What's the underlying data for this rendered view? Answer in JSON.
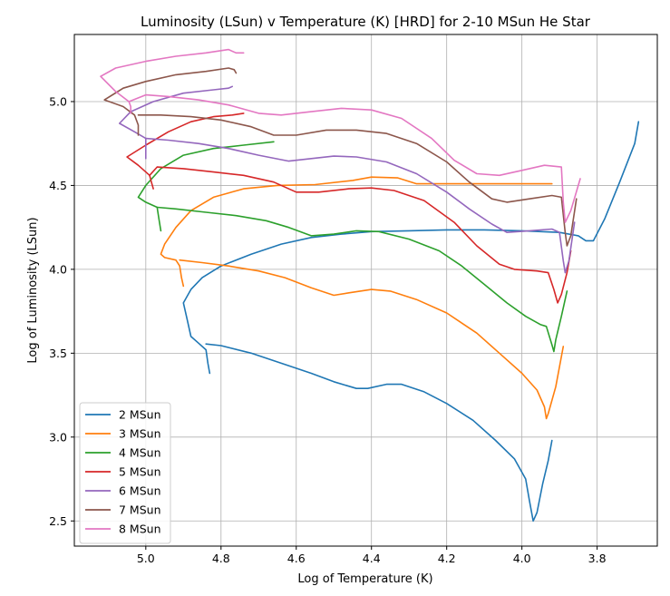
{
  "chart_data": {
    "type": "line",
    "title": "Luminosity (LSun) v Temperature (K) [HRD] for 2-10 MSun He Star",
    "xlabel": "Log of Temperature (K)",
    "ylabel": "Log of Luminosity (LSun)",
    "xlim": [
      5.19,
      3.64
    ],
    "ylim": [
      2.35,
      5.4
    ],
    "x_inverted": true,
    "grid": true,
    "legend_position": "lower-left",
    "x_ticks": [
      5.0,
      4.8,
      4.6,
      4.4,
      4.2,
      4.0,
      3.8
    ],
    "x_tick_labels": [
      "5.0",
      "4.8",
      "4.6",
      "4.4",
      "4.2",
      "4.0",
      "3.8"
    ],
    "y_ticks": [
      2.5,
      3.0,
      3.5,
      4.0,
      4.5,
      5.0
    ],
    "y_tick_labels": [
      "2.5",
      "3.0",
      "3.5",
      "4.0",
      "4.5",
      "5.0"
    ],
    "series": [
      {
        "name": "2 MSun",
        "color": "#1f77b4",
        "points": [
          [
            4.83,
            3.38
          ],
          [
            4.835,
            3.44
          ],
          [
            4.84,
            3.52
          ],
          [
            4.84,
            3.555
          ],
          [
            4.8,
            3.545
          ],
          [
            4.72,
            3.5
          ],
          [
            4.64,
            3.44
          ],
          [
            4.56,
            3.38
          ],
          [
            4.5,
            3.33
          ],
          [
            4.44,
            3.29
          ],
          [
            4.41,
            3.29
          ],
          [
            4.36,
            3.315
          ],
          [
            4.32,
            3.315
          ],
          [
            4.26,
            3.27
          ],
          [
            4.2,
            3.2
          ],
          [
            4.13,
            3.1
          ],
          [
            4.07,
            2.98
          ],
          [
            4.02,
            2.87
          ],
          [
            3.99,
            2.75
          ],
          [
            3.98,
            2.62
          ],
          [
            3.97,
            2.5
          ],
          [
            3.96,
            2.55
          ],
          [
            3.945,
            2.72
          ],
          [
            3.93,
            2.86
          ],
          [
            3.92,
            2.98
          ],
          [
            3.92,
            2.98
          ],
          [
            3.95,
            2.8
          ],
          [
            3.92,
            2.98
          ],
          [
            3.92,
            2.98
          ]
        ],
        "points_main": [
          [
            4.83,
            3.38
          ],
          [
            4.835,
            3.44
          ],
          [
            4.84,
            3.52
          ],
          [
            4.86,
            3.56
          ],
          [
            4.88,
            3.6
          ],
          [
            4.89,
            3.7
          ],
          [
            4.9,
            3.8
          ],
          [
            4.88,
            3.88
          ],
          [
            4.85,
            3.95
          ],
          [
            4.8,
            4.02
          ],
          [
            4.72,
            4.09
          ],
          [
            4.64,
            4.15
          ],
          [
            4.56,
            4.19
          ],
          [
            4.48,
            4.21
          ],
          [
            4.4,
            4.225
          ],
          [
            4.3,
            4.23
          ],
          [
            4.2,
            4.235
          ],
          [
            4.1,
            4.235
          ],
          [
            4.0,
            4.23
          ],
          [
            3.9,
            4.22
          ],
          [
            3.85,
            4.2
          ],
          [
            3.83,
            4.17
          ],
          [
            3.81,
            4.17
          ],
          [
            3.78,
            4.3
          ],
          [
            3.74,
            4.52
          ],
          [
            3.7,
            4.75
          ],
          [
            3.69,
            4.88
          ]
        ],
        "points_tail": [
          [
            4.84,
            3.555
          ],
          [
            4.8,
            3.545
          ],
          [
            4.72,
            3.5
          ],
          [
            4.64,
            3.44
          ],
          [
            4.56,
            3.38
          ],
          [
            4.5,
            3.33
          ],
          [
            4.44,
            3.29
          ],
          [
            4.41,
            3.29
          ],
          [
            4.36,
            3.315
          ],
          [
            4.32,
            3.315
          ],
          [
            4.26,
            3.27
          ],
          [
            4.2,
            3.2
          ],
          [
            4.13,
            3.1
          ],
          [
            4.07,
            2.98
          ],
          [
            4.02,
            2.87
          ],
          [
            3.99,
            2.75
          ],
          [
            3.98,
            2.62
          ],
          [
            3.97,
            2.5
          ],
          [
            3.96,
            2.55
          ],
          [
            3.945,
            2.72
          ],
          [
            3.93,
            2.86
          ],
          [
            3.92,
            2.98
          ]
        ]
      },
      {
        "name": "3 MSun",
        "color": "#ff7f0e",
        "points_main": [
          [
            4.9,
            3.9
          ],
          [
            4.905,
            3.95
          ],
          [
            4.91,
            4.02
          ],
          [
            4.92,
            4.055
          ],
          [
            4.95,
            4.07
          ],
          [
            4.96,
            4.09
          ],
          [
            4.95,
            4.15
          ],
          [
            4.92,
            4.25
          ],
          [
            4.88,
            4.35
          ],
          [
            4.82,
            4.43
          ],
          [
            4.74,
            4.48
          ],
          [
            4.65,
            4.5
          ],
          [
            4.55,
            4.505
          ],
          [
            4.45,
            4.53
          ],
          [
            4.4,
            4.55
          ],
          [
            4.33,
            4.545
          ],
          [
            4.28,
            4.51
          ],
          [
            4.2,
            4.51
          ],
          [
            4.1,
            4.51
          ],
          [
            4.0,
            4.51
          ],
          [
            3.92,
            4.51
          ]
        ],
        "points_tail": [
          [
            4.91,
            4.055
          ],
          [
            4.85,
            4.04
          ],
          [
            4.78,
            4.02
          ],
          [
            4.7,
            3.99
          ],
          [
            4.63,
            3.95
          ],
          [
            4.56,
            3.89
          ],
          [
            4.5,
            3.845
          ],
          [
            4.46,
            3.86
          ],
          [
            4.4,
            3.88
          ],
          [
            4.35,
            3.87
          ],
          [
            4.28,
            3.82
          ],
          [
            4.2,
            3.74
          ],
          [
            4.12,
            3.62
          ],
          [
            4.06,
            3.5
          ],
          [
            4.0,
            3.38
          ],
          [
            3.96,
            3.28
          ],
          [
            3.94,
            3.18
          ],
          [
            3.935,
            3.11
          ],
          [
            3.93,
            3.14
          ],
          [
            3.91,
            3.3
          ],
          [
            3.89,
            3.54
          ]
        ]
      },
      {
        "name": "4 MSun",
        "color": "#2ca02c",
        "points_main": [
          [
            4.96,
            4.23
          ],
          [
            4.965,
            4.3
          ],
          [
            4.97,
            4.37
          ],
          [
            5.0,
            4.4
          ],
          [
            5.02,
            4.43
          ],
          [
            5.0,
            4.5
          ],
          [
            4.96,
            4.6
          ],
          [
            4.9,
            4.68
          ],
          [
            4.82,
            4.72
          ],
          [
            4.74,
            4.74
          ],
          [
            4.66,
            4.76
          ]
        ],
        "points_tail": [
          [
            4.97,
            4.37
          ],
          [
            4.92,
            4.36
          ],
          [
            4.84,
            4.34
          ],
          [
            4.76,
            4.32
          ],
          [
            4.68,
            4.29
          ],
          [
            4.62,
            4.25
          ],
          [
            4.56,
            4.2
          ],
          [
            4.5,
            4.21
          ],
          [
            4.44,
            4.23
          ],
          [
            4.38,
            4.225
          ],
          [
            4.3,
            4.18
          ],
          [
            4.22,
            4.11
          ],
          [
            4.16,
            4.02
          ],
          [
            4.1,
            3.91
          ],
          [
            4.04,
            3.8
          ],
          [
            3.99,
            3.72
          ],
          [
            3.95,
            3.67
          ],
          [
            3.935,
            3.66
          ],
          [
            3.92,
            3.55
          ],
          [
            3.915,
            3.51
          ],
          [
            3.91,
            3.58
          ],
          [
            3.895,
            3.72
          ],
          [
            3.88,
            3.87
          ]
        ]
      },
      {
        "name": "5 MSun",
        "color": "#d62728",
        "points_main": [
          [
            4.98,
            4.48
          ],
          [
            4.985,
            4.52
          ],
          [
            4.99,
            4.56
          ],
          [
            5.02,
            4.62
          ],
          [
            5.05,
            4.67
          ],
          [
            5.0,
            4.74
          ],
          [
            4.94,
            4.82
          ],
          [
            4.88,
            4.88
          ],
          [
            4.82,
            4.91
          ],
          [
            4.77,
            4.92
          ],
          [
            4.74,
            4.93
          ]
        ],
        "points_tail": [
          [
            4.99,
            4.56
          ],
          [
            4.97,
            4.61
          ],
          [
            4.9,
            4.6
          ],
          [
            4.82,
            4.58
          ],
          [
            4.74,
            4.56
          ],
          [
            4.66,
            4.52
          ],
          [
            4.6,
            4.46
          ],
          [
            4.54,
            4.46
          ],
          [
            4.46,
            4.48
          ],
          [
            4.4,
            4.485
          ],
          [
            4.34,
            4.47
          ],
          [
            4.26,
            4.41
          ],
          [
            4.18,
            4.28
          ],
          [
            4.12,
            4.14
          ],
          [
            4.06,
            4.03
          ],
          [
            4.02,
            4.0
          ],
          [
            3.96,
            3.99
          ],
          [
            3.93,
            3.98
          ],
          [
            3.915,
            3.88
          ],
          [
            3.905,
            3.8
          ],
          [
            3.895,
            3.85
          ],
          [
            3.88,
            3.98
          ],
          [
            3.87,
            4.11
          ]
        ]
      },
      {
        "name": "6 MSun",
        "color": "#9467bd",
        "points_main": [
          [
            5.0,
            4.66
          ],
          [
            5.0,
            4.74
          ],
          [
            5.0,
            4.78
          ],
          [
            5.03,
            4.82
          ],
          [
            5.07,
            4.87
          ],
          [
            5.04,
            4.94
          ],
          [
            4.98,
            5.0
          ],
          [
            4.9,
            5.05
          ],
          [
            4.82,
            5.07
          ],
          [
            4.78,
            5.08
          ],
          [
            4.77,
            5.09
          ]
        ],
        "points_tail": [
          [
            5.0,
            4.78
          ],
          [
            4.94,
            4.77
          ],
          [
            4.86,
            4.75
          ],
          [
            4.78,
            4.72
          ],
          [
            4.7,
            4.68
          ],
          [
            4.62,
            4.645
          ],
          [
            4.56,
            4.66
          ],
          [
            4.5,
            4.675
          ],
          [
            4.44,
            4.67
          ],
          [
            4.36,
            4.64
          ],
          [
            4.28,
            4.57
          ],
          [
            4.2,
            4.46
          ],
          [
            4.14,
            4.36
          ],
          [
            4.08,
            4.27
          ],
          [
            4.04,
            4.22
          ],
          [
            3.98,
            4.23
          ],
          [
            3.92,
            4.24
          ],
          [
            3.9,
            4.22
          ],
          [
            3.89,
            4.05
          ],
          [
            3.885,
            3.98
          ],
          [
            3.875,
            4.05
          ],
          [
            3.86,
            4.28
          ]
        ]
      },
      {
        "name": "7 MSun",
        "color": "#8c564b",
        "points_main": [
          [
            5.02,
            4.8
          ],
          [
            5.02,
            4.86
          ],
          [
            5.03,
            4.92
          ],
          [
            5.06,
            4.97
          ],
          [
            5.11,
            5.01
          ],
          [
            5.06,
            5.08
          ],
          [
            5.0,
            5.12
          ],
          [
            4.92,
            5.16
          ],
          [
            4.84,
            5.18
          ],
          [
            4.78,
            5.2
          ],
          [
            4.765,
            5.19
          ],
          [
            4.76,
            5.17
          ]
        ],
        "points_tail": [
          [
            5.02,
            4.92
          ],
          [
            4.96,
            4.92
          ],
          [
            4.88,
            4.91
          ],
          [
            4.8,
            4.89
          ],
          [
            4.72,
            4.85
          ],
          [
            4.66,
            4.8
          ],
          [
            4.6,
            4.8
          ],
          [
            4.52,
            4.83
          ],
          [
            4.44,
            4.83
          ],
          [
            4.36,
            4.81
          ],
          [
            4.28,
            4.75
          ],
          [
            4.2,
            4.64
          ],
          [
            4.14,
            4.52
          ],
          [
            4.08,
            4.42
          ],
          [
            4.04,
            4.4
          ],
          [
            3.98,
            4.42
          ],
          [
            3.92,
            4.44
          ],
          [
            3.895,
            4.43
          ],
          [
            3.885,
            4.22
          ],
          [
            3.88,
            4.14
          ],
          [
            3.87,
            4.2
          ],
          [
            3.855,
            4.42
          ]
        ]
      },
      {
        "name": "8 MSun",
        "color": "#e377c2",
        "points_main": [
          [
            5.04,
            4.93
          ],
          [
            5.04,
            4.97
          ],
          [
            5.045,
            5.0
          ],
          [
            5.08,
            5.06
          ],
          [
            5.12,
            5.15
          ],
          [
            5.08,
            5.2
          ],
          [
            5.0,
            5.24
          ],
          [
            4.92,
            5.27
          ],
          [
            4.84,
            5.29
          ],
          [
            4.78,
            5.31
          ],
          [
            4.76,
            5.29
          ],
          [
            4.74,
            5.29
          ]
        ],
        "points_tail": [
          [
            5.045,
            5.0
          ],
          [
            5.0,
            5.04
          ],
          [
            4.94,
            5.03
          ],
          [
            4.86,
            5.01
          ],
          [
            4.78,
            4.98
          ],
          [
            4.7,
            4.93
          ],
          [
            4.64,
            4.92
          ],
          [
            4.56,
            4.94
          ],
          [
            4.48,
            4.96
          ],
          [
            4.4,
            4.95
          ],
          [
            4.32,
            4.9
          ],
          [
            4.24,
            4.78
          ],
          [
            4.18,
            4.65
          ],
          [
            4.12,
            4.57
          ],
          [
            4.06,
            4.56
          ],
          [
            4.0,
            4.59
          ],
          [
            3.94,
            4.62
          ],
          [
            3.895,
            4.61
          ],
          [
            3.89,
            4.4
          ],
          [
            3.885,
            4.28
          ],
          [
            3.87,
            4.35
          ],
          [
            3.845,
            4.54
          ]
        ]
      }
    ]
  }
}
